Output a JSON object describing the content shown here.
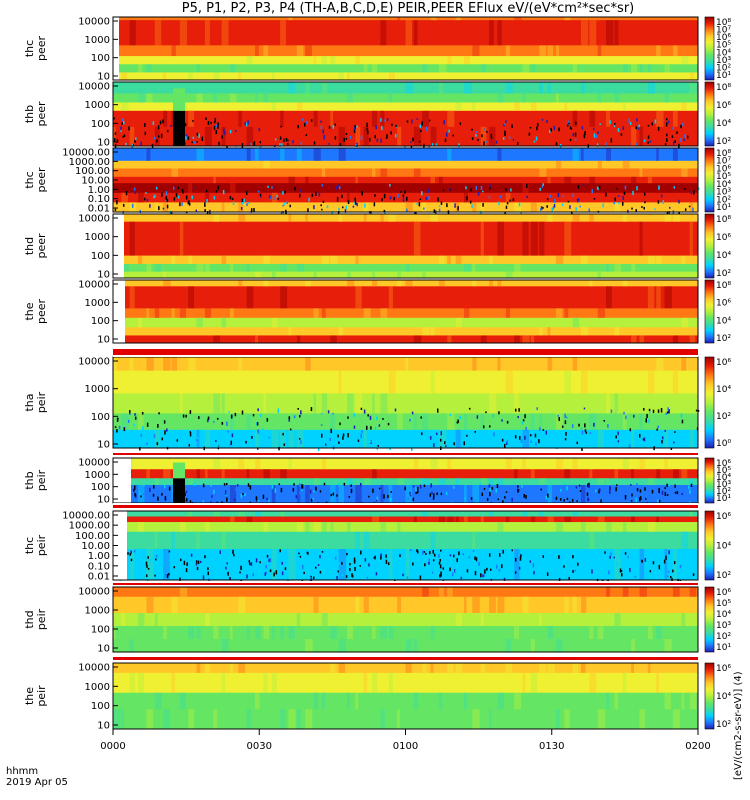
{
  "title": "P5, P1, P2, P3, P4 (TH-A,B,C,D,E) PEIR,PEER EFlux eV/(eV*cm²*sec*sr)",
  "x_axis": {
    "ticks": [
      "0000",
      "0030",
      "0100",
      "0130",
      "0200"
    ],
    "unit_label": "hhmm",
    "date_label": "2019 Apr 05"
  },
  "colorbar_unit_label": "[eV/(cm2-s-sr-eV)] (4)",
  "colors": {
    "palette_low_to_high": [
      "#1e1eb4",
      "#1e78ff",
      "#00d2ff",
      "#3cdca0",
      "#64e664",
      "#b4f03c",
      "#f0f032",
      "#ffc828",
      "#ff7814",
      "#e61e0a",
      "#a00000"
    ],
    "gap_red": "#e00000",
    "no_data": "#000000"
  },
  "chart_data": [
    {
      "type": "heatmap",
      "panel": "thc-peer-top",
      "ylabel": [
        "thc",
        "peer"
      ],
      "yticks": [
        "10000",
        "1000",
        "100",
        "10"
      ],
      "y_scale": "log",
      "x_range": [
        "0000",
        "0200"
      ],
      "colorbar_ticks": [
        "10⁸",
        "10⁷",
        "10⁶",
        "10⁵",
        "10⁴",
        "10³",
        "10²",
        "10¹"
      ],
      "dominant_level": "high-red band 1000-10000 eV, yellow/green below 100 eV"
    },
    {
      "type": "heatmap",
      "panel": "thb-peer",
      "ylabel": [
        "thb",
        "peer"
      ],
      "yticks": [
        "10000",
        "1000",
        "100",
        "10"
      ],
      "y_scale": "log",
      "colorbar_ticks": [
        "10⁸",
        "10⁶",
        "10⁴",
        "10²"
      ],
      "dominant_level": "green/blue noise above 3000 eV, red below 1000 eV, data gap near 0015"
    },
    {
      "type": "heatmap",
      "panel": "thc-peer",
      "ylabel": [
        "thc",
        "peer"
      ],
      "yticks": [
        "10000.00",
        "1000.00",
        "100.00",
        "10.00",
        "1.00",
        "0.10",
        "0.01"
      ],
      "y_scale": "log",
      "colorbar_ticks": [
        "10⁸",
        "10⁷",
        "10⁶",
        "10⁵",
        "10⁴",
        "10³",
        "10²",
        "10¹"
      ],
      "dominant_level": "noisy blue top band, orange/red constant bands below"
    },
    {
      "type": "heatmap",
      "panel": "thd-peer",
      "ylabel": [
        "thd",
        "peer"
      ],
      "yticks": [
        "10000",
        "1000",
        "100",
        "10"
      ],
      "y_scale": "log",
      "colorbar_ticks": [
        "10⁸",
        "10⁶",
        "10⁴",
        "10²"
      ],
      "dominant_level": "red band 300-10000 eV, green below 100 eV"
    },
    {
      "type": "heatmap",
      "panel": "the-peer",
      "ylabel": [
        "the",
        "peer"
      ],
      "yticks": [
        "10000",
        "1000",
        "100",
        "10"
      ],
      "y_scale": "log",
      "colorbar_ticks": [
        "10⁸",
        "10⁶",
        "10⁴",
        "10²"
      ],
      "dominant_level": "red band 1000-10000 eV, structured near 0045-0055"
    },
    {
      "type": "heatmap",
      "panel": "tha-peir",
      "ylabel": [
        "tha",
        "peir"
      ],
      "yticks": [
        "10000",
        "1000",
        "100",
        "10"
      ],
      "y_scale": "log",
      "colorbar_ticks": [
        "10⁶",
        "10⁴",
        "10²",
        "10⁰"
      ],
      "dominant_level": "orange near 10000 eV fading to noisy green/black below 100 eV"
    },
    {
      "type": "heatmap",
      "panel": "thb-peir",
      "ylabel": [
        "thb",
        "peir"
      ],
      "yticks": [
        "10000",
        "1000",
        "100",
        "10"
      ],
      "y_scale": "log",
      "colorbar_ticks": [
        "10⁶",
        "10⁵",
        "10⁴",
        "10³",
        "10²",
        "10¹"
      ],
      "dominant_level": "red/yellow band near 1000-3000 eV, blue noise below"
    },
    {
      "type": "heatmap",
      "panel": "thc-peir",
      "ylabel": [
        "thc",
        "peir"
      ],
      "yticks": [
        "10000.00",
        "1000.00",
        "100.00",
        "10.00",
        "1.00",
        "0.10",
        "0.01"
      ],
      "y_scale": "log",
      "colorbar_ticks": [
        "10⁶",
        "10⁴",
        "10²"
      ],
      "dominant_level": "red band near 1000 eV, green/blue striped noise below"
    },
    {
      "type": "heatmap",
      "panel": "thd-peir",
      "ylabel": [
        "thd",
        "peir"
      ],
      "yticks": [
        "10000",
        "1000",
        "100",
        "10"
      ],
      "y_scale": "log",
      "colorbar_ticks": [
        "10⁶",
        "10⁵",
        "10⁴",
        "10³",
        "10²",
        "10¹"
      ],
      "dominant_level": "red/orange 1000-10000 eV, green below 100 eV"
    },
    {
      "type": "heatmap",
      "panel": "the-peir",
      "ylabel": [
        "the",
        "peir"
      ],
      "yticks": [
        "10000",
        "1000",
        "100",
        "10"
      ],
      "y_scale": "log",
      "colorbar_ticks": [
        "10⁶",
        "10⁴",
        "10²"
      ],
      "dominant_level": "yellow/orange upper half, green lower half"
    }
  ]
}
